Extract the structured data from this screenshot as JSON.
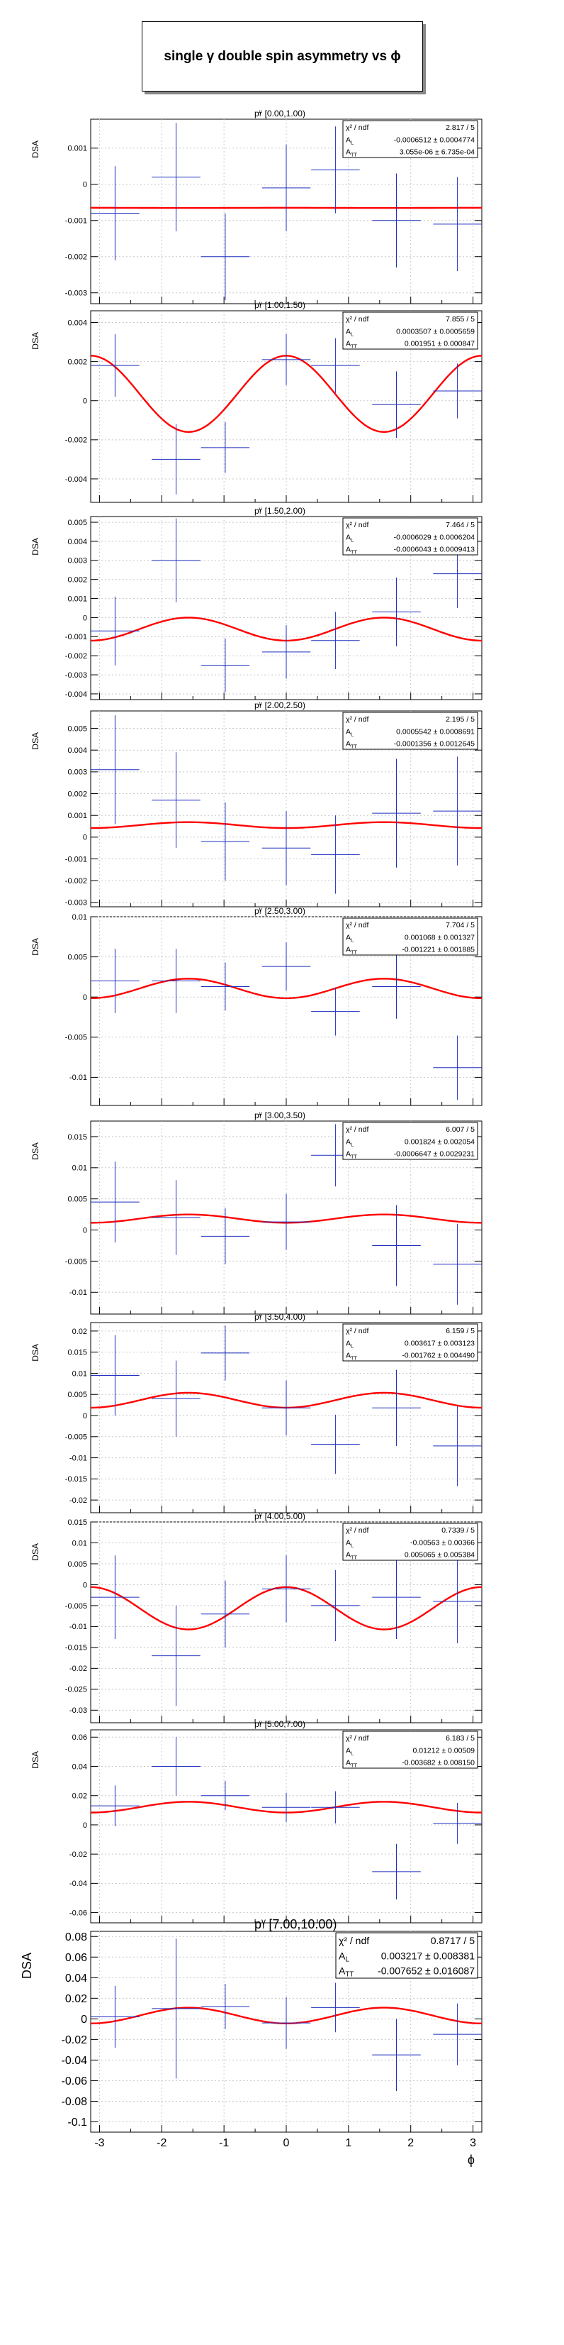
{
  "title": {
    "prefix": "single",
    "particle": "γ",
    "middle": "double spin asymmetry vs",
    "variable": "ϕ"
  },
  "chart_data": [
    {
      "type": "scatter",
      "panel_label": "p_T^γ [0.00,1.00)",
      "ylabel": "DSA",
      "xlabel": "",
      "xlim": [
        -3.1416,
        3.1416
      ],
      "ylim": [
        -0.0033,
        0.0018
      ],
      "yticks": [
        "-0.003",
        "-0.002",
        "-0.001",
        "0",
        "0.001"
      ],
      "ytick_values": [
        -0.003,
        -0.002,
        -0.001,
        0,
        0.001
      ],
      "xticks": [],
      "stats": {
        "chi2_label": "χ² / ndf",
        "chi2": "2.817 / 5",
        "al_label": "A_L",
        "al": "-0.0006512 ± 0.0004774",
        "att_label": "A_TT",
        "att": "3.055e-06 ± 6.735e-04"
      },
      "fit": {
        "c": -0.0006512,
        "a": 3.055e-06
      },
      "points": [
        {
          "x": -2.75,
          "xerr": 0.39,
          "y": -0.0008,
          "yerr": 0.0013
        },
        {
          "x": -1.77,
          "xerr": 0.39,
          "y": 0.0002,
          "yerr": 0.0015
        },
        {
          "x": -0.98,
          "xerr": 0.39,
          "y": -0.002,
          "yerr": 0.0012
        },
        {
          "x": 0.0,
          "xerr": 0.39,
          "y": -0.0001,
          "yerr": 0.0012
        },
        {
          "x": 0.79,
          "xerr": 0.39,
          "y": 0.0004,
          "yerr": 0.0012
        },
        {
          "x": 1.77,
          "xerr": 0.39,
          "y": -0.001,
          "yerr": 0.0013
        },
        {
          "x": 2.75,
          "xerr": 0.39,
          "y": -0.0011,
          "yerr": 0.0013
        }
      ]
    },
    {
      "type": "scatter",
      "panel_label": "p_T^γ [1.00,1.50)",
      "ylabel": "DSA",
      "xlabel": "",
      "xlim": [
        -3.1416,
        3.1416
      ],
      "ylim": [
        -0.0052,
        0.0046
      ],
      "yticks": [
        "-0.004",
        "-0.002",
        "0",
        "0.002",
        "0.004"
      ],
      "ytick_values": [
        -0.004,
        -0.002,
        0,
        0.002,
        0.004
      ],
      "xticks": [],
      "stats": {
        "chi2_label": "χ² / ndf",
        "chi2": "7.855 / 5",
        "al_label": "A_L",
        "al": "0.0003507 ± 0.0005659",
        "att_label": "A_TT",
        "att": "0.001951 ± 0.000847"
      },
      "fit": {
        "c": 0.0003507,
        "a": 0.001951
      },
      "points": [
        {
          "x": -2.75,
          "xerr": 0.39,
          "y": 0.0018,
          "yerr": 0.0016
        },
        {
          "x": -1.77,
          "xerr": 0.39,
          "y": -0.003,
          "yerr": 0.0018
        },
        {
          "x": -0.98,
          "xerr": 0.39,
          "y": -0.0024,
          "yerr": 0.0013
        },
        {
          "x": 0.0,
          "xerr": 0.39,
          "y": 0.0021,
          "yerr": 0.0013
        },
        {
          "x": 0.79,
          "xerr": 0.39,
          "y": 0.0018,
          "yerr": 0.0014
        },
        {
          "x": 1.77,
          "xerr": 0.39,
          "y": -0.0002,
          "yerr": 0.0017
        },
        {
          "x": 2.75,
          "xerr": 0.39,
          "y": 0.0005,
          "yerr": 0.0014
        }
      ]
    },
    {
      "type": "scatter",
      "panel_label": "p_T^γ [1.50,2.00)",
      "ylabel": "DSA",
      "xlabel": "",
      "xlim": [
        -3.1416,
        3.1416
      ],
      "ylim": [
        -0.0043,
        0.0053
      ],
      "yticks": [
        "-0.004",
        "-0.003",
        "-0.002",
        "-0.001",
        "0",
        "0.001",
        "0.002",
        "0.003",
        "0.004",
        "0.005"
      ],
      "ytick_values": [
        -0.004,
        -0.003,
        -0.002,
        -0.001,
        0,
        0.001,
        0.002,
        0.003,
        0.004,
        0.005
      ],
      "xticks": [],
      "stats": {
        "chi2_label": "χ² / ndf",
        "chi2": "7.464 / 5",
        "al_label": "A_L",
        "al": "-0.0006029 ± 0.0006204",
        "att_label": "A_TT",
        "att": "-0.0006043 ± 0.0009413"
      },
      "fit": {
        "c": -0.0006029,
        "a": -0.0006043
      },
      "points": [
        {
          "x": -2.75,
          "xerr": 0.39,
          "y": -0.0007,
          "yerr": 0.0018
        },
        {
          "x": -1.77,
          "xerr": 0.39,
          "y": 0.003,
          "yerr": 0.0022
        },
        {
          "x": -0.98,
          "xerr": 0.39,
          "y": -0.0025,
          "yerr": 0.0014
        },
        {
          "x": 0.0,
          "xerr": 0.39,
          "y": -0.0018,
          "yerr": 0.0014
        },
        {
          "x": 0.79,
          "xerr": 0.39,
          "y": -0.0012,
          "yerr": 0.0015
        },
        {
          "x": 1.77,
          "xerr": 0.39,
          "y": 0.0003,
          "yerr": 0.0018
        },
        {
          "x": 2.75,
          "xerr": 0.39,
          "y": 0.0023,
          "yerr": 0.0018
        }
      ]
    },
    {
      "type": "scatter",
      "panel_label": "p_T^γ [2.00,2.50)",
      "ylabel": "DSA",
      "xlabel": "",
      "xlim": [
        -3.1416,
        3.1416
      ],
      "ylim": [
        -0.0032,
        0.0058
      ],
      "yticks": [
        "-0.003",
        "-0.002",
        "-0.001",
        "0",
        "0.001",
        "0.002",
        "0.003",
        "0.004",
        "0.005"
      ],
      "ytick_values": [
        -0.003,
        -0.002,
        -0.001,
        0,
        0.001,
        0.002,
        0.003,
        0.004,
        0.005
      ],
      "xticks": [],
      "stats": {
        "chi2_label": "χ² / ndf",
        "chi2": "2.195 / 5",
        "al_label": "A_L",
        "al": "0.0005542 ± 0.0008691",
        "att_label": "A_TT",
        "att": "-0.0001356 ± 0.0012645"
      },
      "fit": {
        "c": 0.0005542,
        "a": -0.0001356
      },
      "points": [
        {
          "x": -2.75,
          "xerr": 0.39,
          "y": 0.0031,
          "yerr": 0.0025
        },
        {
          "x": -1.77,
          "xerr": 0.39,
          "y": 0.0017,
          "yerr": 0.0022
        },
        {
          "x": -0.98,
          "xerr": 0.39,
          "y": -0.0002,
          "yerr": 0.0018
        },
        {
          "x": 0.0,
          "xerr": 0.39,
          "y": -0.0005,
          "yerr": 0.0017
        },
        {
          "x": 0.79,
          "xerr": 0.39,
          "y": -0.0008,
          "yerr": 0.0018
        },
        {
          "x": 1.77,
          "xerr": 0.39,
          "y": 0.0011,
          "yerr": 0.0025
        },
        {
          "x": 2.75,
          "xerr": 0.39,
          "y": 0.0012,
          "yerr": 0.0025
        }
      ]
    },
    {
      "type": "scatter",
      "panel_label": "p_T^γ [2.50,3.00)",
      "ylabel": "DSA",
      "xlabel": "",
      "xlim": [
        -3.1416,
        3.1416
      ],
      "ylim": [
        -0.0135,
        0.01
      ],
      "yticks": [
        "-0.01",
        "-0.005",
        "0",
        "0.005",
        "0.01"
      ],
      "ytick_values": [
        -0.01,
        -0.005,
        0,
        0.005,
        0.01
      ],
      "xticks": [],
      "stats": {
        "chi2_label": "χ² / ndf",
        "chi2": "7.704 / 5",
        "al_label": "A_L",
        "al": "0.001068 ± 0.001327",
        "att_label": "A_TT",
        "att": "-0.001221 ± 0.001885"
      },
      "fit": {
        "c": 0.001068,
        "a": -0.001221
      },
      "points": [
        {
          "x": -2.75,
          "xerr": 0.39,
          "y": 0.002,
          "yerr": 0.004
        },
        {
          "x": -1.77,
          "xerr": 0.39,
          "y": 0.002,
          "yerr": 0.004
        },
        {
          "x": -0.98,
          "xerr": 0.39,
          "y": 0.0013,
          "yerr": 0.003
        },
        {
          "x": 0.0,
          "xerr": 0.39,
          "y": 0.0038,
          "yerr": 0.003
        },
        {
          "x": 0.79,
          "xerr": 0.39,
          "y": -0.0018,
          "yerr": 0.003
        },
        {
          "x": 1.77,
          "xerr": 0.39,
          "y": 0.0013,
          "yerr": 0.004
        },
        {
          "x": 2.75,
          "xerr": 0.39,
          "y": -0.0088,
          "yerr": 0.004
        }
      ]
    },
    {
      "type": "scatter",
      "panel_label": "p_T^γ [3.00,3.50)",
      "ylabel": "DSA",
      "xlabel": "",
      "xlim": [
        -3.1416,
        3.1416
      ],
      "ylim": [
        -0.0135,
        0.0175
      ],
      "yticks": [
        "-0.01",
        "-0.005",
        "0",
        "0.005",
        "0.01",
        "0.015"
      ],
      "ytick_values": [
        -0.01,
        -0.005,
        0,
        0.005,
        0.01,
        0.015
      ],
      "xticks": [],
      "stats": {
        "chi2_label": "χ² / ndf",
        "chi2": "6.007 / 5",
        "al_label": "A_L",
        "al": "0.001824 ± 0.002054",
        "att_label": "A_TT",
        "att": "-0.0006647 ± 0.0029231"
      },
      "fit": {
        "c": 0.001824,
        "a": -0.0006647
      },
      "points": [
        {
          "x": -2.75,
          "xerr": 0.39,
          "y": 0.0045,
          "yerr": 0.0065
        },
        {
          "x": -1.77,
          "xerr": 0.39,
          "y": 0.002,
          "yerr": 0.006
        },
        {
          "x": -0.98,
          "xerr": 0.39,
          "y": -0.001,
          "yerr": 0.0045
        },
        {
          "x": 0.0,
          "xerr": 0.39,
          "y": 0.0013,
          "yerr": 0.0045
        },
        {
          "x": 0.79,
          "xerr": 0.39,
          "y": 0.012,
          "yerr": 0.005
        },
        {
          "x": 1.77,
          "xerr": 0.39,
          "y": -0.0025,
          "yerr": 0.0065
        },
        {
          "x": 2.75,
          "xerr": 0.39,
          "y": -0.0055,
          "yerr": 0.0065
        }
      ]
    },
    {
      "type": "scatter",
      "panel_label": "p_T^γ [3.50,4.00)",
      "ylabel": "DSA",
      "xlabel": "",
      "xlim": [
        -3.1416,
        3.1416
      ],
      "ylim": [
        -0.023,
        0.022
      ],
      "yticks": [
        "-0.02",
        "-0.015",
        "-0.01",
        "-0.005",
        "0",
        "0.005",
        "0.01",
        "0.015",
        "0.02"
      ],
      "ytick_values": [
        -0.02,
        -0.015,
        -0.01,
        -0.005,
        0,
        0.005,
        0.01,
        0.015,
        0.02
      ],
      "xticks": [],
      "stats": {
        "chi2_label": "χ² / ndf",
        "chi2": "6.159 / 5",
        "al_label": "A_L",
        "al": "0.003617 ± 0.003123",
        "att_label": "A_TT",
        "att": "-0.001762 ± 0.004490"
      },
      "fit": {
        "c": 0.003617,
        "a": -0.001762
      },
      "points": [
        {
          "x": -2.75,
          "xerr": 0.39,
          "y": 0.0095,
          "yerr": 0.0095
        },
        {
          "x": -1.77,
          "xerr": 0.39,
          "y": 0.004,
          "yerr": 0.009
        },
        {
          "x": -0.98,
          "xerr": 0.39,
          "y": 0.0148,
          "yerr": 0.0065
        },
        {
          "x": 0.0,
          "xerr": 0.39,
          "y": 0.0018,
          "yerr": 0.0065
        },
        {
          "x": 0.79,
          "xerr": 0.39,
          "y": -0.0068,
          "yerr": 0.007
        },
        {
          "x": 1.77,
          "xerr": 0.39,
          "y": 0.0018,
          "yerr": 0.009
        },
        {
          "x": 2.75,
          "xerr": 0.39,
          "y": -0.0072,
          "yerr": 0.0095
        }
      ]
    },
    {
      "type": "scatter",
      "panel_label": "p_T^γ [4.00,5.00)",
      "ylabel": "DSA",
      "xlabel": "",
      "xlim": [
        -3.1416,
        3.1416
      ],
      "ylim": [
        -0.033,
        0.015
      ],
      "yticks": [
        "-0.03",
        "-0.025",
        "-0.02",
        "-0.015",
        "-0.01",
        "-0.005",
        "0",
        "0.005",
        "0.01",
        "0.015"
      ],
      "ytick_values": [
        -0.03,
        -0.025,
        -0.02,
        -0.015,
        -0.01,
        -0.005,
        0,
        0.005,
        0.01,
        0.015
      ],
      "xticks": [],
      "stats": {
        "chi2_label": "χ² / ndf",
        "chi2": "0.7339 / 5",
        "al_label": "A_L",
        "al": "-0.00563 ± 0.00366",
        "att_label": "A_TT",
        "att": "0.005065 ± 0.005384"
      },
      "fit": {
        "c": -0.00563,
        "a": 0.005065
      },
      "points": [
        {
          "x": -2.75,
          "xerr": 0.39,
          "y": -0.003,
          "yerr": 0.01
        },
        {
          "x": -1.77,
          "xerr": 0.39,
          "y": -0.017,
          "yerr": 0.012
        },
        {
          "x": -0.98,
          "xerr": 0.39,
          "y": -0.007,
          "yerr": 0.008
        },
        {
          "x": 0.0,
          "xerr": 0.39,
          "y": -0.001,
          "yerr": 0.008
        },
        {
          "x": 0.79,
          "xerr": 0.39,
          "y": -0.005,
          "yerr": 0.0085
        },
        {
          "x": 1.77,
          "xerr": 0.39,
          "y": -0.003,
          "yerr": 0.01
        },
        {
          "x": 2.75,
          "xerr": 0.39,
          "y": -0.004,
          "yerr": 0.01
        }
      ]
    },
    {
      "type": "scatter",
      "panel_label": "p_T^γ [5.00,7.00)",
      "ylabel": "DSA",
      "xlabel": "",
      "xlim": [
        -3.1416,
        3.1416
      ],
      "ylim": [
        -0.067,
        0.065
      ],
      "yticks": [
        "-0.06",
        "-0.04",
        "-0.02",
        "0",
        "0.02",
        "0.04",
        "0.06"
      ],
      "ytick_values": [
        -0.06,
        -0.04,
        -0.02,
        0,
        0.02,
        0.04,
        0.06
      ],
      "xticks": [],
      "stats": {
        "chi2_label": "χ² / ndf",
        "chi2": "6.183 / 5",
        "al_label": "A_L",
        "al": "0.01212 ± 0.00509",
        "att_label": "A_TT",
        "att": "-0.003682 ± 0.008150"
      },
      "fit": {
        "c": 0.01212,
        "a": -0.003682
      },
      "points": [
        {
          "x": -2.75,
          "xerr": 0.39,
          "y": 0.013,
          "yerr": 0.014
        },
        {
          "x": -1.77,
          "xerr": 0.39,
          "y": 0.04,
          "yerr": 0.02
        },
        {
          "x": -0.98,
          "xerr": 0.39,
          "y": 0.02,
          "yerr": 0.01
        },
        {
          "x": 0.0,
          "xerr": 0.39,
          "y": 0.012,
          "yerr": 0.01
        },
        {
          "x": 0.79,
          "xerr": 0.39,
          "y": 0.012,
          "yerr": 0.011
        },
        {
          "x": 1.77,
          "xerr": 0.39,
          "y": -0.032,
          "yerr": 0.019
        },
        {
          "x": 2.75,
          "xerr": 0.39,
          "y": 0.001,
          "yerr": 0.014
        }
      ]
    },
    {
      "type": "scatter",
      "panel_label": "p_T^γ [7.00,10.00)",
      "ylabel": "DSA",
      "xlabel": "ϕ",
      "xlim": [
        -3.1416,
        3.1416
      ],
      "ylim": [
        -0.11,
        0.085
      ],
      "yticks": [
        "-0.1",
        "-0.08",
        "-0.06",
        "-0.04",
        "-0.02",
        "0",
        "0.02",
        "0.04",
        "0.06",
        "0.08"
      ],
      "ytick_values": [
        -0.1,
        -0.08,
        -0.06,
        -0.04,
        -0.02,
        0,
        0.02,
        0.04,
        0.06,
        0.08
      ],
      "xticks": [
        "-3",
        "-2",
        "-1",
        "0",
        "1",
        "2",
        "3"
      ],
      "xtick_values": [
        -3,
        -2,
        -1,
        0,
        1,
        2,
        3
      ],
      "stats": {
        "chi2_label": "χ² / ndf",
        "chi2": "0.8717 / 5",
        "al_label": "A_L",
        "al": "0.003217 ± 0.008381",
        "att_label": "A_TT",
        "att": "-0.007652 ± 0.016087"
      },
      "fit": {
        "c": 0.003217,
        "a": -0.007652
      },
      "points": [
        {
          "x": -2.75,
          "xerr": 0.39,
          "y": 0.002,
          "yerr": 0.03
        },
        {
          "x": -1.77,
          "xerr": 0.39,
          "y": 0.01,
          "yerr": 0.068
        },
        {
          "x": -0.98,
          "xerr": 0.39,
          "y": 0.012,
          "yerr": 0.022
        },
        {
          "x": 0.0,
          "xerr": 0.39,
          "y": -0.004,
          "yerr": 0.025
        },
        {
          "x": 0.79,
          "xerr": 0.39,
          "y": 0.011,
          "yerr": 0.024
        },
        {
          "x": 1.77,
          "xerr": 0.39,
          "y": -0.035,
          "yerr": 0.035
        },
        {
          "x": 2.75,
          "xerr": 0.39,
          "y": -0.015,
          "yerr": 0.03
        }
      ]
    }
  ]
}
